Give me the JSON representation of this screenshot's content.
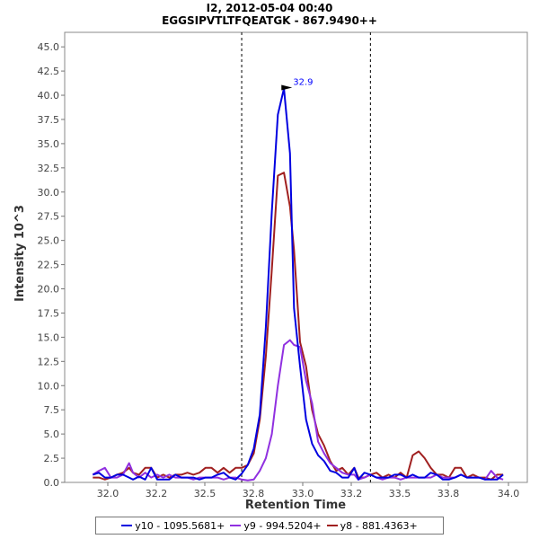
{
  "chart_data": {
    "type": "line",
    "title": "I2, 2012-05-04 00:40",
    "subtitle": "EGGSIPVTLTFQEATGK - 867.9490++",
    "xlabel": "Retention Time",
    "ylabel": "Intensity 10^3",
    "xlim": [
      31.8,
      34.1
    ],
    "ylim": [
      0,
      46.5
    ],
    "xticks": [
      "32.0",
      "32.2",
      "32.5",
      "32.8",
      "33.0",
      "33.2",
      "33.5",
      "33.8",
      "34.0"
    ],
    "yticks": [
      "0.0",
      "2.5",
      "5.0",
      "7.5",
      "10.0",
      "12.5",
      "15.0",
      "17.5",
      "20.0",
      "22.5",
      "25.0",
      "27.5",
      "30.0",
      "32.5",
      "35.0",
      "37.5",
      "40.0",
      "42.5",
      "45.0"
    ],
    "grid": false,
    "legend_position": "bottom",
    "integration_boundaries": [
      32.68,
      33.32
    ],
    "peak_annotation": {
      "x": 32.94,
      "y": 40.7,
      "label": "32.9",
      "color": "#0000ff"
    },
    "series": [
      {
        "name": "y10 - 1095.5681+",
        "color": "#0000e0",
        "x": [
          31.94,
          31.97,
          32.0,
          32.03,
          32.06,
          32.09,
          32.12,
          32.14,
          32.17,
          32.2,
          32.23,
          32.26,
          32.29,
          32.32,
          32.35,
          32.38,
          32.41,
          32.44,
          32.47,
          32.5,
          32.53,
          32.56,
          32.59,
          32.62,
          32.65,
          32.68,
          32.71,
          32.74,
          32.77,
          32.8,
          32.83,
          32.86,
          32.89,
          32.92,
          32.94,
          32.97,
          33.0,
          33.03,
          33.06,
          33.09,
          33.12,
          33.15,
          33.18,
          33.21,
          33.24,
          33.26,
          33.29,
          33.32,
          33.35,
          33.38,
          33.41,
          33.44,
          33.47,
          33.5,
          33.53,
          33.56,
          33.59,
          33.62,
          33.65,
          33.68,
          33.71,
          33.74,
          33.77,
          33.8,
          33.83,
          33.86,
          33.89,
          33.92,
          33.95,
          33.98
        ],
        "values": [
          0.8,
          1.0,
          0.5,
          0.5,
          0.8,
          0.8,
          0.5,
          0.3,
          0.6,
          0.3,
          1.5,
          0.3,
          0.3,
          0.3,
          0.8,
          0.5,
          0.5,
          0.5,
          0.3,
          0.5,
          0.5,
          0.8,
          1.0,
          0.5,
          0.3,
          0.9,
          1.8,
          3.5,
          7.0,
          16.0,
          28.0,
          38.0,
          40.7,
          34.0,
          18.0,
          12.0,
          6.5,
          4.0,
          2.8,
          2.2,
          1.2,
          1.0,
          0.5,
          0.5,
          1.5,
          0.3,
          1.0,
          0.8,
          0.5,
          0.5,
          0.5,
          0.8,
          0.8,
          0.5,
          0.8,
          0.5,
          0.5,
          1.0,
          0.8,
          0.3,
          0.3,
          0.5,
          0.8,
          0.5,
          0.5,
          0.5,
          0.3,
          0.3,
          0.3,
          0.8
        ]
      },
      {
        "name": "y9 - 994.5204+",
        "color": "#9030e0",
        "x": [
          31.94,
          31.97,
          32.0,
          32.03,
          32.06,
          32.09,
          32.12,
          32.14,
          32.17,
          32.2,
          32.23,
          32.26,
          32.29,
          32.32,
          32.35,
          32.38,
          32.41,
          32.44,
          32.47,
          32.5,
          32.53,
          32.56,
          32.59,
          32.62,
          32.65,
          32.68,
          32.71,
          32.74,
          32.77,
          32.8,
          32.83,
          32.86,
          32.89,
          32.92,
          32.94,
          32.97,
          33.0,
          33.03,
          33.06,
          33.09,
          33.12,
          33.15,
          33.18,
          33.21,
          33.24,
          33.26,
          33.29,
          33.32,
          33.35,
          33.38,
          33.41,
          33.44,
          33.47,
          33.5,
          33.53,
          33.56,
          33.59,
          33.62,
          33.65,
          33.68,
          33.71,
          33.74,
          33.77,
          33.8,
          33.83,
          33.86,
          33.89,
          33.92,
          33.95,
          33.98
        ],
        "values": [
          0.8,
          1.2,
          1.5,
          0.5,
          0.5,
          0.8,
          2.0,
          1.0,
          0.5,
          1.0,
          0.5,
          0.8,
          0.5,
          0.8,
          0.5,
          0.5,
          0.5,
          0.3,
          0.5,
          0.5,
          0.5,
          0.5,
          0.3,
          0.5,
          0.5,
          0.3,
          0.2,
          0.3,
          1.2,
          2.5,
          5.0,
          10.0,
          14.2,
          14.7,
          14.2,
          14.0,
          10.5,
          8.2,
          4.2,
          3.0,
          2.0,
          1.5,
          1.0,
          0.8,
          0.8,
          0.3,
          0.5,
          0.8,
          0.5,
          0.3,
          0.5,
          0.5,
          0.3,
          0.5,
          0.5,
          0.5,
          0.5,
          0.5,
          0.8,
          0.5,
          0.5,
          0.5,
          0.8,
          0.5,
          0.5,
          0.5,
          0.3,
          1.2,
          0.5,
          0.3
        ]
      },
      {
        "name": "y8 - 881.4363+",
        "color": "#a02020",
        "x": [
          31.94,
          31.97,
          32.0,
          32.03,
          32.06,
          32.09,
          32.12,
          32.14,
          32.17,
          32.2,
          32.23,
          32.26,
          32.29,
          32.32,
          32.35,
          32.38,
          32.41,
          32.44,
          32.47,
          32.5,
          32.53,
          32.56,
          32.59,
          32.62,
          32.65,
          32.68,
          32.71,
          32.74,
          32.77,
          32.8,
          32.83,
          32.86,
          32.89,
          32.92,
          32.94,
          32.97,
          33.0,
          33.03,
          33.06,
          33.09,
          33.12,
          33.15,
          33.18,
          33.21,
          33.24,
          33.26,
          33.29,
          33.32,
          33.35,
          33.38,
          33.41,
          33.44,
          33.47,
          33.5,
          33.53,
          33.56,
          33.59,
          33.62,
          33.65,
          33.68,
          33.71,
          33.74,
          33.77,
          33.8,
          33.83,
          33.86,
          33.89,
          33.92,
          33.95,
          33.98
        ],
        "values": [
          0.5,
          0.5,
          0.3,
          0.5,
          0.8,
          1.0,
          1.5,
          1.0,
          0.8,
          1.5,
          1.5,
          0.5,
          0.8,
          0.5,
          0.8,
          0.8,
          1.0,
          0.8,
          1.0,
          1.5,
          1.5,
          1.0,
          1.5,
          1.0,
          1.5,
          1.5,
          1.8,
          3.0,
          6.5,
          13.0,
          22.0,
          31.7,
          32.0,
          28.5,
          24.0,
          14.5,
          12.0,
          7.5,
          5.0,
          3.8,
          2.2,
          1.2,
          1.5,
          0.8,
          1.5,
          0.5,
          0.5,
          0.8,
          1.0,
          0.5,
          0.8,
          0.5,
          1.0,
          0.5,
          2.8,
          3.2,
          2.5,
          1.5,
          0.8,
          0.8,
          0.5,
          1.5,
          1.5,
          0.5,
          0.8,
          0.5,
          0.5,
          0.3,
          0.8,
          0.8
        ]
      }
    ]
  }
}
